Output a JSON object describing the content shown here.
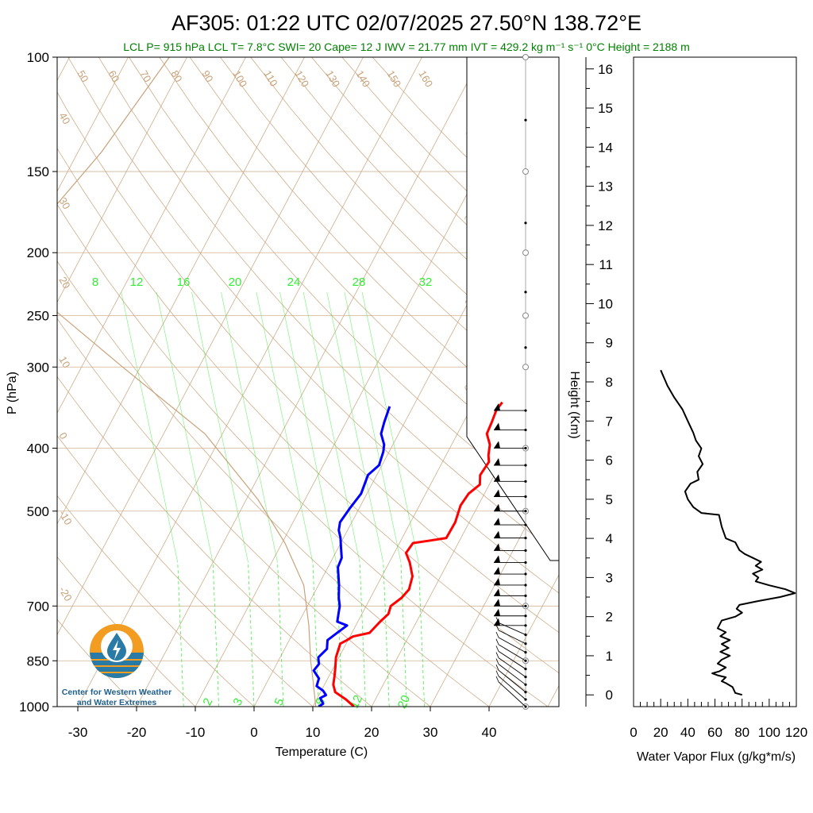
{
  "title": "AF305: 01:22 UTC 02/07/2025  27.50°N 138.72°E",
  "subtitle": "LCL P= 915 hPa  LCL T= 7.8°C  SWI= 20  Cape= 12 J  IWV = 21.77 mm  IVT = 429.2 kg m⁻¹ s⁻¹  0°C Height = 2188 m",
  "logo": {
    "line1": "Center for Western Weather",
    "line2": "and Water Extremes"
  },
  "colors": {
    "temperature": "#ff0000",
    "dewpoint": "#0000ff",
    "isotherm": "#c8a27a",
    "mixing_ratio": "#33ee33",
    "parcel": "#c8a27a",
    "flux": "#000000"
  },
  "chart_data": [
    {
      "type": "line",
      "title": "Skew-T log-P",
      "xlabel": "Temperature (C)",
      "ylabel": "P (hPa)",
      "xlim": [
        -33,
        50
      ],
      "ylim": [
        1000,
        100
      ],
      "y_scale": "log",
      "x_ticks": [
        -30,
        -20,
        -10,
        0,
        10,
        20,
        30,
        40
      ],
      "y_ticks": [
        100,
        150,
        200,
        250,
        300,
        400,
        500,
        700,
        850,
        1000
      ],
      "mixing_ratio_lines_top": [
        8,
        12,
        16,
        20,
        24,
        28,
        32
      ],
      "mixing_ratio_lines_bottom": [
        2,
        3,
        5,
        8,
        12,
        20
      ],
      "isotherm_labels": [
        50,
        60,
        70,
        80,
        90,
        100,
        110,
        120,
        130,
        140,
        150,
        160
      ],
      "dry_adiabat_labels": [
        40,
        30,
        20,
        10,
        0,
        -10,
        -20
      ],
      "right_skew_labels": [
        30,
        20,
        10,
        0,
        10,
        20,
        30
      ],
      "series": [
        {
          "name": "Temperature",
          "points": [
            [
              17,
              1000
            ],
            [
              15,
              975
            ],
            [
              12.5,
              950
            ],
            [
              11.5,
              925
            ],
            [
              11,
              900
            ],
            [
              10.3,
              870
            ],
            [
              9.5,
              840
            ],
            [
              9,
              800
            ],
            [
              9.8,
              790
            ],
            [
              10.5,
              780
            ],
            [
              13,
              770
            ],
            [
              13.8,
              740
            ],
            [
              14.5,
              720
            ],
            [
              14.2,
              700
            ],
            [
              15.3,
              680
            ],
            [
              15.8,
              660
            ],
            [
              15.2,
              630
            ],
            [
              13.5,
              600
            ],
            [
              12,
              580
            ],
            [
              12.3,
              560
            ],
            [
              15,
              555
            ],
            [
              17.5,
              550
            ],
            [
              17.6,
              520
            ],
            [
              17,
              490
            ],
            [
              17.3,
              470
            ],
            [
              18.4,
              455
            ],
            [
              17.6,
              440
            ],
            [
              17.9,
              420
            ],
            [
              17.2,
              410
            ],
            [
              16.5,
              395
            ],
            [
              15,
              380
            ],
            [
              14.8,
              365
            ],
            [
              14.5,
              350
            ],
            [
              14.8,
              340
            ]
          ]
        },
        {
          "name": "Dewpoint",
          "points": [
            [
              11,
              1000
            ],
            [
              11.5,
              990
            ],
            [
              10.5,
              970
            ],
            [
              11.2,
              960
            ],
            [
              10.3,
              945
            ],
            [
              8.8,
              930
            ],
            [
              8.5,
              905
            ],
            [
              6.9,
              880
            ],
            [
              7.2,
              860
            ],
            [
              6.5,
              840
            ],
            [
              7.2,
              815
            ],
            [
              6.5,
              790
            ],
            [
              7.5,
              770
            ],
            [
              8.5,
              750
            ],
            [
              6.5,
              740
            ],
            [
              6,
              720
            ],
            [
              5.5,
              700
            ],
            [
              4.6,
              680
            ],
            [
              3.5,
              650
            ],
            [
              1.7,
              610
            ],
            [
              1.5,
              590
            ],
            [
              0.5,
              570
            ],
            [
              -0.5,
              550
            ],
            [
              -1.5,
              535
            ],
            [
              -2,
              520
            ],
            [
              -1.6,
              495
            ],
            [
              -1,
              470
            ],
            [
              -1.5,
              440
            ],
            [
              -0.5,
              425
            ],
            [
              -1,
              405
            ],
            [
              -1.5,
              395
            ],
            [
              -3,
              380
            ],
            [
              -3.5,
              365
            ],
            [
              -4,
              345
            ]
          ]
        },
        {
          "name": "Parcel",
          "points": [
            [
              10.5,
              1000
            ],
            [
              7.8,
              915
            ],
            [
              5.5,
              850
            ],
            [
              2,
              750
            ],
            [
              -2.5,
              650
            ],
            [
              -9.5,
              560
            ],
            [
              -18,
              480
            ],
            [
              -33,
              380
            ],
            [
              -53,
              300
            ],
            [
              -75,
              230
            ],
            [
              -80,
              200
            ],
            [
              -79,
              170
            ],
            [
              -76,
              140
            ],
            [
              -73,
              100
            ]
          ]
        }
      ]
    },
    {
      "type": "barbs",
      "title": "Wind",
      "levels_hpa": [
        1000,
        975,
        950,
        925,
        900,
        875,
        850,
        825,
        800,
        775,
        750,
        725,
        700,
        675,
        650,
        625,
        600,
        575,
        550,
        525,
        500,
        475,
        450,
        425,
        400,
        375,
        350
      ]
    },
    {
      "type": "line",
      "title": "Water Vapor Flux",
      "xlabel": "Water Vapor Flux (g/kg*m/s)",
      "ylabel": "Height (Km)",
      "xlim": [
        0,
        120
      ],
      "ylim": [
        -0.3,
        16.3
      ],
      "x_ticks": [
        0,
        20,
        40,
        60,
        80,
        100,
        120
      ],
      "y_ticks": [
        0,
        1,
        2,
        3,
        4,
        5,
        6,
        7,
        8,
        9,
        10,
        11,
        12,
        13,
        14,
        15,
        16
      ],
      "series": [
        {
          "name": "Water Vapor Flux",
          "points": [
            [
              80,
              0
            ],
            [
              75,
              0.05
            ],
            [
              73,
              0.2
            ],
            [
              68,
              0.3
            ],
            [
              65,
              0.35
            ],
            [
              68,
              0.45
            ],
            [
              62,
              0.5
            ],
            [
              58,
              0.55
            ],
            [
              63,
              0.6
            ],
            [
              68,
              0.7
            ],
            [
              62,
              0.8
            ],
            [
              65,
              0.9
            ],
            [
              71,
              1.0
            ],
            [
              64,
              1.1
            ],
            [
              70,
              1.2
            ],
            [
              65,
              1.3
            ],
            [
              71,
              1.4
            ],
            [
              64,
              1.5
            ],
            [
              68,
              1.6
            ],
            [
              62,
              1.7
            ],
            [
              65,
              1.9
            ],
            [
              75,
              2.0
            ],
            [
              80,
              2.1
            ],
            [
              76,
              2.2
            ],
            [
              78,
              2.3
            ],
            [
              92,
              2.4
            ],
            [
              108,
              2.5
            ],
            [
              119,
              2.6
            ],
            [
              112,
              2.7
            ],
            [
              100,
              2.8
            ],
            [
              90,
              2.9
            ],
            [
              92,
              3.0
            ],
            [
              88,
              3.1
            ],
            [
              95,
              3.2
            ],
            [
              90,
              3.3
            ],
            [
              94,
              3.4
            ],
            [
              88,
              3.5
            ],
            [
              82,
              3.6
            ],
            [
              78,
              3.7
            ],
            [
              75,
              3.9
            ],
            [
              68,
              4.0
            ],
            [
              65,
              4.3
            ],
            [
              63,
              4.6
            ],
            [
              50,
              4.65
            ],
            [
              44,
              4.8
            ],
            [
              40,
              5.0
            ],
            [
              38,
              5.2
            ],
            [
              42,
              5.4
            ],
            [
              48,
              5.5
            ],
            [
              47,
              5.7
            ],
            [
              51,
              5.9
            ],
            [
              48,
              6.1
            ],
            [
              50,
              6.3
            ],
            [
              46,
              6.5
            ],
            [
              44,
              6.7
            ],
            [
              40,
              7.0
            ],
            [
              36,
              7.3
            ],
            [
              30,
              7.6
            ],
            [
              25,
              7.9
            ],
            [
              20,
              8.3
            ]
          ]
        }
      ]
    }
  ]
}
